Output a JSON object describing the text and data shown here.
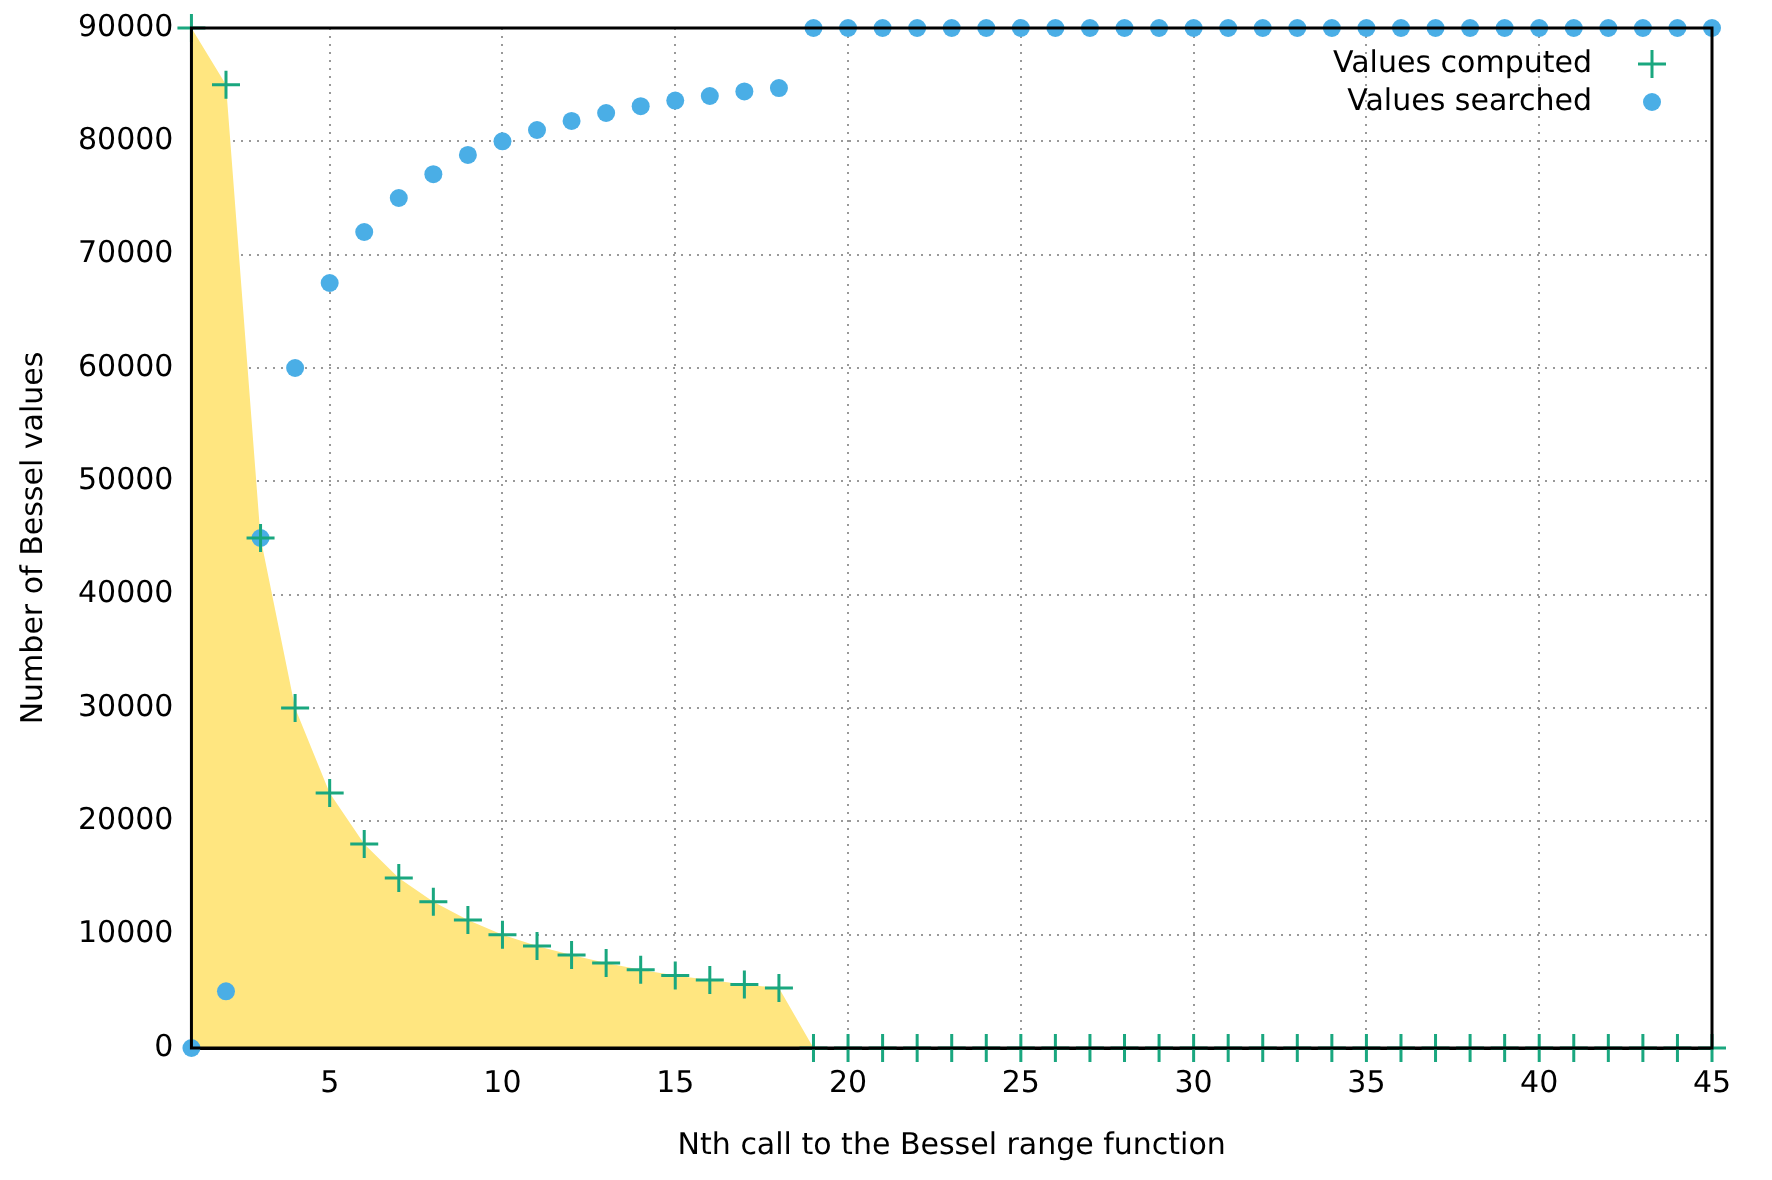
{
  "chart_data": {
    "type": "scatter",
    "xlabel": "Nth call to the Bessel range function",
    "ylabel": "Number of Bessel values",
    "x": [
      1,
      2,
      3,
      4,
      5,
      6,
      7,
      8,
      9,
      10,
      11,
      12,
      13,
      14,
      15,
      16,
      17,
      18,
      19,
      20,
      21,
      22,
      23,
      24,
      25,
      26,
      27,
      28,
      29,
      30,
      31,
      32,
      33,
      34,
      35,
      36,
      37,
      38,
      39,
      40,
      41,
      42,
      43,
      44,
      45
    ],
    "series": [
      {
        "type": "area",
        "color": "#ffe680",
        "values": [
          90000,
          85000,
          45000,
          30000,
          22500,
          18000,
          15000,
          12900,
          11300,
          10000,
          9000,
          8200,
          7500,
          6900,
          6400,
          6000,
          5600,
          5300,
          0,
          0,
          0,
          0,
          0,
          0,
          0,
          0,
          0,
          0,
          0,
          0,
          0,
          0,
          0,
          0,
          0,
          0,
          0,
          0,
          0,
          0,
          0,
          0,
          0,
          0,
          0
        ]
      },
      {
        "name": "Values computed",
        "color": "#1aa77f",
        "marker": "cross",
        "values": [
          90000,
          85000,
          45000,
          30000,
          22500,
          18000,
          15000,
          12900,
          11300,
          10000,
          9000,
          8200,
          7500,
          6900,
          6400,
          6000,
          5600,
          5300,
          0,
          0,
          0,
          0,
          0,
          0,
          0,
          0,
          0,
          0,
          0,
          0,
          0,
          0,
          0,
          0,
          0,
          0,
          0,
          0,
          0,
          0,
          0,
          0,
          0,
          0,
          0
        ]
      },
      {
        "name": "Values searched",
        "color": "#4aaee6",
        "marker": "circle",
        "values": [
          0,
          5000,
          45000,
          60000,
          67500,
          72000,
          75000,
          77100,
          78800,
          80000,
          81000,
          81800,
          82500,
          83100,
          83600,
          84000,
          84400,
          84700,
          90000,
          90000,
          90000,
          90000,
          90000,
          90000,
          90000,
          90000,
          90000,
          90000,
          90000,
          90000,
          90000,
          90000,
          90000,
          90000,
          90000,
          90000,
          90000,
          90000,
          90000,
          90000,
          90000,
          90000,
          90000,
          90000,
          90000
        ]
      }
    ],
    "xlim": [
      1,
      45
    ],
    "xticks": [
      5,
      10,
      15,
      20,
      25,
      30,
      35,
      40,
      45
    ],
    "ylim": [
      0,
      90000
    ],
    "yticks": [
      0,
      10000,
      20000,
      30000,
      40000,
      50000,
      60000,
      70000,
      80000,
      90000
    ],
    "grid": true,
    "legend": "top right"
  }
}
